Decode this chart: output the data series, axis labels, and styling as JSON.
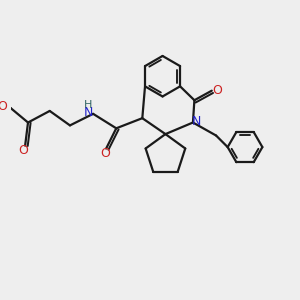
{
  "background_color": "#eeeeee",
  "bond_color": "#1a1a1a",
  "N_color": "#2222cc",
  "O_color": "#cc2222",
  "H_color": "#336666",
  "line_width": 1.6,
  "xlim": [
    0,
    10
  ],
  "ylim": [
    0,
    10
  ]
}
